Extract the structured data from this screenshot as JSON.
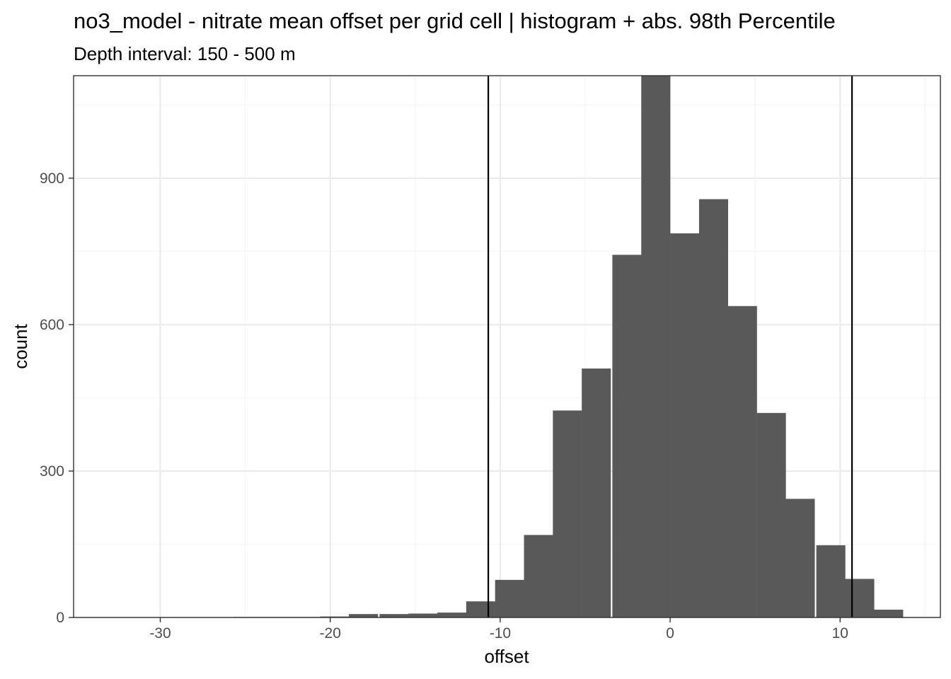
{
  "chart_data": {
    "type": "bar",
    "title": "no3_model  -  nitrate mean offset per grid cell | histogram + abs. 98th Percentile",
    "subtitle": "Depth interval: 150 - 500 m",
    "xlabel": "offset",
    "ylabel": "count",
    "xlim": [
      -35.1,
      15.9
    ],
    "ylim": [
      0,
      1110
    ],
    "x_ticks": [
      -30,
      -20,
      -10,
      0,
      10
    ],
    "x_tick_labels": [
      "-30",
      "-20",
      "-10",
      "0",
      "10"
    ],
    "y_ticks": [
      0,
      300,
      600,
      900
    ],
    "y_tick_labels": [
      "0",
      "300",
      "600",
      "900"
    ],
    "bin_width": 1.71,
    "bins": [
      {
        "x_left": -25.7,
        "count": 1
      },
      {
        "x_left": -24.0,
        "count": 1
      },
      {
        "x_left": -22.3,
        "count": 1
      },
      {
        "x_left": -20.6,
        "count": 2
      },
      {
        "x_left": -18.9,
        "count": 7
      },
      {
        "x_left": -17.1,
        "count": 7
      },
      {
        "x_left": -15.4,
        "count": 8
      },
      {
        "x_left": -13.7,
        "count": 10
      },
      {
        "x_left": -12.0,
        "count": 33
      },
      {
        "x_left": -10.3,
        "count": 77
      },
      {
        "x_left": -8.6,
        "count": 169
      },
      {
        "x_left": -6.9,
        "count": 424
      },
      {
        "x_left": -5.2,
        "count": 510
      },
      {
        "x_left": -3.4,
        "count": 743
      },
      {
        "x_left": -1.7,
        "count": 1110
      },
      {
        "x_left": 0.0,
        "count": 787
      },
      {
        "x_left": 1.7,
        "count": 857
      },
      {
        "x_left": 3.4,
        "count": 638
      },
      {
        "x_left": 5.1,
        "count": 419
      },
      {
        "x_left": 6.8,
        "count": 243
      },
      {
        "x_left": 8.6,
        "count": 148
      },
      {
        "x_left": 10.3,
        "count": 79
      },
      {
        "x_left": 12.0,
        "count": 16
      }
    ],
    "percentile_lines": [
      -10.7,
      10.7
    ],
    "grid": true,
    "colors": {
      "bar": "#595959",
      "panel_border": "#333333",
      "grid_major": "#ebebeb",
      "grid_minor": "#f5f5f5",
      "vline": "#000000"
    }
  }
}
